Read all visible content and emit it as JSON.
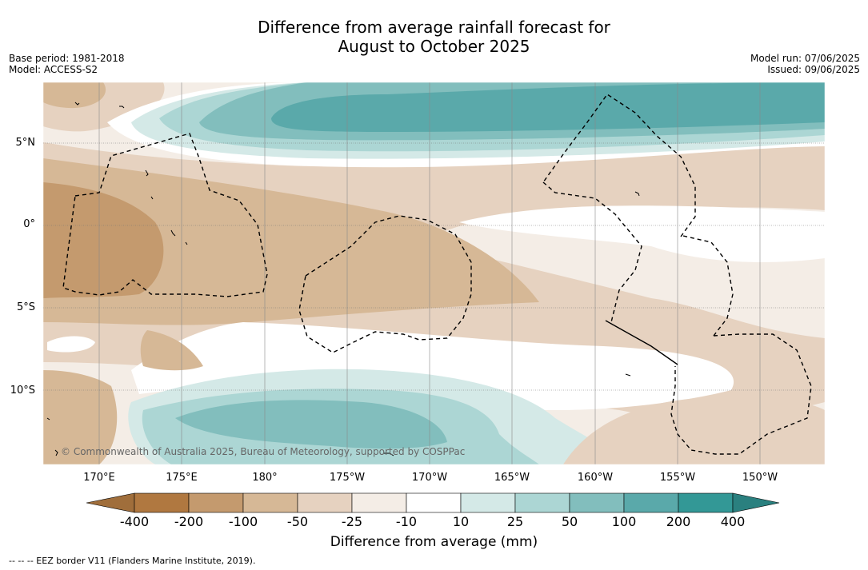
{
  "title_line1": "Difference from average rainfall forecast for",
  "title_line2": "August to October 2025",
  "base_period": "Base period: 1981-2018",
  "model": "Model: ACCESS-S2",
  "model_run": "Model run: 07/06/2025",
  "issued": "Issued: 09/06/2025",
  "latitude_labels": [
    "5°N",
    "0°",
    "5°S",
    "10°S"
  ],
  "longitude_labels": [
    "170°E",
    "175°E",
    "180°",
    "175°W",
    "170°W",
    "165°W",
    "160°W",
    "155°W",
    "150°W"
  ],
  "copyright": "© Commonwealth of Australia 2025, Bureau of Meteorology, supported by COSPPac",
  "colorbar": {
    "ticks": [
      "-400",
      "-200",
      "-100",
      "-50",
      "-25",
      "-10",
      "10",
      "25",
      "50",
      "100",
      "200",
      "400"
    ],
    "colors": [
      "#a06e3b",
      "#b07840",
      "#c49a6e",
      "#d6b896",
      "#e6d2c0",
      "#f4ede6",
      "#ffffff",
      "#d4e9e7",
      "#acd6d4",
      "#82bebd",
      "#5aa9aa",
      "#339896",
      "#2a807f"
    ],
    "label": "Difference from average (mm)"
  },
  "footnote": "--  --  -- EEZ border V11 (Flanders Marine Institute, 2019)."
}
